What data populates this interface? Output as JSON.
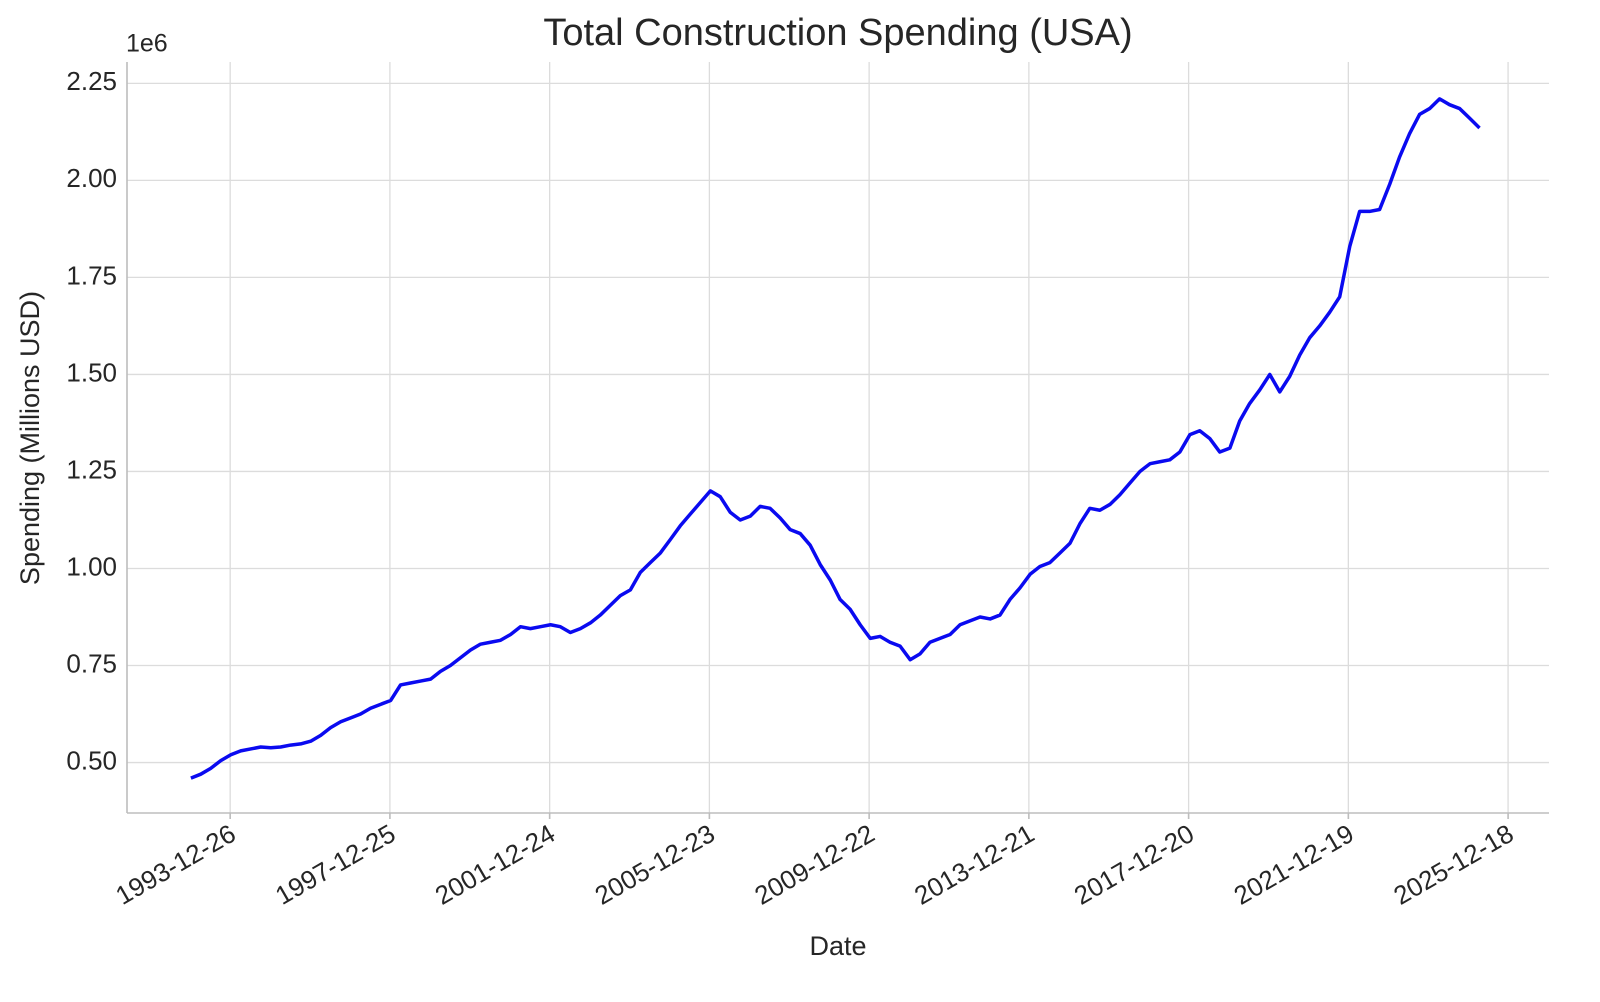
{
  "chart_data": {
    "type": "line",
    "title": "Total Construction Spending (USA)",
    "xlabel": "Date",
    "ylabel": "Spending (Millions USD)",
    "y_offset_label": "1e6",
    "grid": true,
    "color": "#0a0af0",
    "xlim": [
      "1991-05-28",
      "2026-12-27"
    ],
    "xticks": [
      "1993-12-26",
      "1997-12-25",
      "2001-12-24",
      "2005-12-23",
      "2009-12-22",
      "2013-12-21",
      "2017-12-20",
      "2021-12-19",
      "2025-12-18"
    ],
    "ylim": [
      370000,
      2305000
    ],
    "yticks": [
      {
        "value": 500000,
        "label": "0.50"
      },
      {
        "value": 750000,
        "label": "0.75"
      },
      {
        "value": 1000000,
        "label": "1.00"
      },
      {
        "value": 1250000,
        "label": "1.25"
      },
      {
        "value": 1500000,
        "label": "1.50"
      },
      {
        "value": 1750000,
        "label": "1.75"
      },
      {
        "value": 2000000,
        "label": "2.00"
      },
      {
        "value": 2250000,
        "label": "2.25"
      }
    ],
    "x": [
      "1993-01-01",
      "1993-04-01",
      "1993-07-01",
      "1993-10-01",
      "1994-01-01",
      "1994-04-01",
      "1994-07-01",
      "1994-10-01",
      "1995-01-01",
      "1995-04-01",
      "1995-07-01",
      "1995-10-01",
      "1996-01-01",
      "1996-04-01",
      "1996-07-01",
      "1996-10-01",
      "1997-01-01",
      "1997-04-01",
      "1997-07-01",
      "1997-10-01",
      "1998-01-01",
      "1998-04-01",
      "1998-07-01",
      "1998-10-01",
      "1999-01-01",
      "1999-04-01",
      "1999-07-01",
      "1999-10-01",
      "2000-01-01",
      "2000-04-01",
      "2000-07-01",
      "2000-10-01",
      "2001-01-01",
      "2001-04-01",
      "2001-07-01",
      "2001-10-01",
      "2002-01-01",
      "2002-04-01",
      "2002-07-01",
      "2002-10-01",
      "2003-01-01",
      "2003-04-01",
      "2003-07-01",
      "2003-10-01",
      "2004-01-01",
      "2004-04-01",
      "2004-07-01",
      "2004-10-01",
      "2005-01-01",
      "2005-04-01",
      "2005-07-01",
      "2005-10-01",
      "2006-01-01",
      "2006-04-01",
      "2006-07-01",
      "2006-10-01",
      "2007-01-01",
      "2007-04-01",
      "2007-07-01",
      "2007-10-01",
      "2008-01-01",
      "2008-04-01",
      "2008-07-01",
      "2008-10-01",
      "2009-01-01",
      "2009-04-01",
      "2009-07-01",
      "2009-10-01",
      "2010-01-01",
      "2010-04-01",
      "2010-07-01",
      "2010-10-01",
      "2011-01-01",
      "2011-04-01",
      "2011-07-01",
      "2011-10-01",
      "2012-01-01",
      "2012-04-01",
      "2012-07-01",
      "2012-10-01",
      "2013-01-01",
      "2013-04-01",
      "2013-07-01",
      "2013-10-01",
      "2014-01-01",
      "2014-04-01",
      "2014-07-01",
      "2014-10-01",
      "2015-01-01",
      "2015-04-01",
      "2015-07-01",
      "2015-10-01",
      "2016-01-01",
      "2016-04-01",
      "2016-07-01",
      "2016-10-01",
      "2017-01-01",
      "2017-04-01",
      "2017-07-01",
      "2017-10-01",
      "2018-01-01",
      "2018-04-01",
      "2018-07-01",
      "2018-10-01",
      "2019-01-01",
      "2019-04-01",
      "2019-07-01",
      "2019-10-01",
      "2020-01-01",
      "2020-04-01",
      "2020-07-01",
      "2020-10-01",
      "2021-01-01",
      "2021-04-01",
      "2021-07-01",
      "2021-10-01",
      "2022-01-01",
      "2022-04-01",
      "2022-07-01",
      "2022-10-01",
      "2023-01-01",
      "2023-04-01",
      "2023-07-01",
      "2023-10-01",
      "2024-01-01",
      "2024-04-01",
      "2024-07-01",
      "2024-10-01",
      "2025-01-01",
      "2025-04-01"
    ],
    "values": [
      460000,
      470000,
      485000,
      505000,
      520000,
      530000,
      535000,
      540000,
      538000,
      540000,
      545000,
      548000,
      555000,
      570000,
      590000,
      605000,
      615000,
      625000,
      640000,
      650000,
      660000,
      700000,
      705000,
      710000,
      715000,
      735000,
      750000,
      770000,
      790000,
      805000,
      810000,
      815000,
      830000,
      850000,
      845000,
      850000,
      855000,
      850000,
      835000,
      845000,
      860000,
      880000,
      905000,
      930000,
      945000,
      990000,
      1015000,
      1040000,
      1075000,
      1110000,
      1140000,
      1170000,
      1200000,
      1185000,
      1145000,
      1125000,
      1135000,
      1160000,
      1155000,
      1130000,
      1100000,
      1090000,
      1060000,
      1010000,
      970000,
      920000,
      895000,
      855000,
      820000,
      825000,
      810000,
      800000,
      765000,
      780000,
      810000,
      820000,
      830000,
      855000,
      865000,
      875000,
      870000,
      880000,
      920000,
      950000,
      985000,
      1005000,
      1015000,
      1040000,
      1065000,
      1115000,
      1155000,
      1150000,
      1165000,
      1190000,
      1220000,
      1250000,
      1270000,
      1275000,
      1280000,
      1300000,
      1345000,
      1355000,
      1335000,
      1300000,
      1310000,
      1380000,
      1425000,
      1460000,
      1500000,
      1455000,
      1495000,
      1550000,
      1595000,
      1625000,
      1660000,
      1700000,
      1830000,
      1920000,
      1920000,
      1925000,
      1990000,
      2060000,
      2120000,
      2170000,
      2185000,
      2210000,
      2195000,
      2185000,
      2160000,
      2135000
    ]
  }
}
